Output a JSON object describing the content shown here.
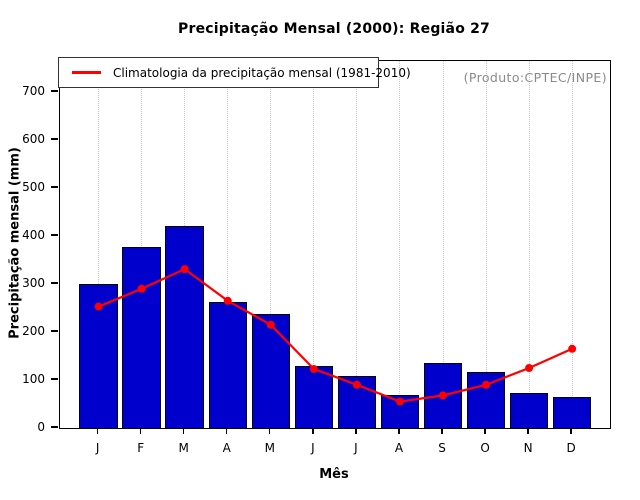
{
  "title": "Precipitação Mensal (2000): Região 27",
  "legend": {
    "label": "Climatologia da precipitação mensal (1981-2010)"
  },
  "watermark": "(Produto:CPTEC/INPE)",
  "chart_data": {
    "type": "bar",
    "title": "Precipitação Mensal (2000): Região 27",
    "categories": [
      "J",
      "F",
      "M",
      "A",
      "M",
      "J",
      "J",
      "A",
      "S",
      "O",
      "N",
      "D"
    ],
    "series": [
      {
        "name": "Precipitação mensal 2000",
        "type": "bar",
        "color": "#0000CD",
        "values": [
          300,
          377,
          420,
          262,
          237,
          130,
          108,
          68,
          135,
          117,
          72,
          65
        ]
      },
      {
        "name": "Climatologia da precipitação mensal (1981-2010)",
        "type": "line",
        "color": "#FF0000",
        "values": [
          253,
          290,
          331,
          265,
          215,
          123,
          90,
          55,
          68,
          90,
          125,
          165
        ]
      }
    ],
    "xlabel": "Mês",
    "ylabel": "Precipitação mensal (mm)",
    "ylim": [
      0,
      700
    ],
    "yticks": [
      0,
      100,
      200,
      300,
      400,
      500,
      600,
      700
    ],
    "grid": "vertical-dotted",
    "legend_position": "top-left",
    "annotation": "(Produto:CPTEC/INPE)"
  }
}
